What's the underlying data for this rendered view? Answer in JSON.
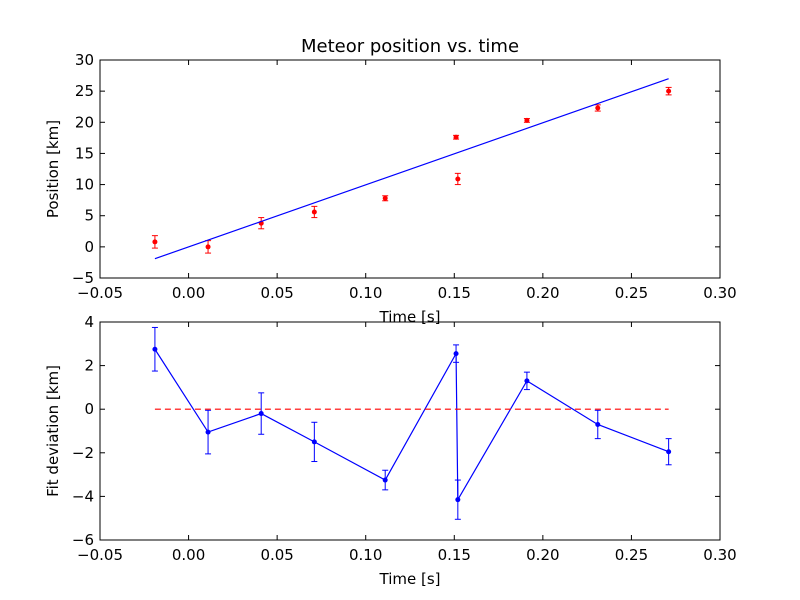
{
  "chart_data": [
    {
      "type": "scatter",
      "title": "Meteor position vs. time",
      "xlabel": "Time [s]",
      "ylabel": "Position [km]",
      "xlim": [
        -0.05,
        0.3
      ],
      "ylim": [
        -5,
        30
      ],
      "x_ticks": [
        -0.05,
        0.0,
        0.05,
        0.1,
        0.15,
        0.2,
        0.25,
        0.3
      ],
      "x_tick_labels": [
        "−0.05",
        "0.00",
        "0.05",
        "0.10",
        "0.15",
        "0.20",
        "0.25",
        "0.30"
      ],
      "y_ticks": [
        -5,
        0,
        5,
        10,
        15,
        20,
        25,
        30
      ],
      "y_tick_labels": [
        "−5",
        "0",
        "5",
        "10",
        "15",
        "20",
        "25",
        "30"
      ],
      "grid": false,
      "series": [
        {
          "style": "points-with-errorbars",
          "color": "#ff0000",
          "x": [
            -0.019,
            0.011,
            0.041,
            0.071,
            0.111,
            0.151,
            0.152,
            0.191,
            0.231,
            0.271
          ],
          "y": [
            0.8,
            0.0,
            3.8,
            5.6,
            7.8,
            17.6,
            10.9,
            20.3,
            22.3,
            25.0
          ],
          "yerr": [
            1.0,
            1.0,
            0.9,
            0.9,
            0.4,
            0.3,
            0.9,
            0.3,
            0.5,
            0.6
          ]
        },
        {
          "style": "line",
          "color": "#0000ff",
          "x": [
            -0.019,
            0.271
          ],
          "y": [
            -1.9,
            27.0
          ]
        }
      ]
    },
    {
      "type": "line",
      "title": "",
      "xlabel": "Time [s]",
      "ylabel": "Fit deviation [km]",
      "xlim": [
        -0.05,
        0.3
      ],
      "ylim": [
        -6,
        4
      ],
      "x_ticks": [
        -0.05,
        0.0,
        0.05,
        0.1,
        0.15,
        0.2,
        0.25,
        0.3
      ],
      "x_tick_labels": [
        "−0.05",
        "0.00",
        "0.05",
        "0.10",
        "0.15",
        "0.20",
        "0.25",
        "0.30"
      ],
      "y_ticks": [
        -6,
        -4,
        -2,
        0,
        2,
        4
      ],
      "y_tick_labels": [
        "−6",
        "−4",
        "−2",
        "0",
        "2",
        "4"
      ],
      "grid": false,
      "series": [
        {
          "style": "line-points-with-errorbars",
          "color": "#0000ff",
          "x": [
            -0.019,
            0.011,
            0.041,
            0.071,
            0.111,
            0.151,
            0.152,
            0.191,
            0.231,
            0.271
          ],
          "y": [
            2.75,
            -1.05,
            -0.2,
            -1.5,
            -3.25,
            2.55,
            -4.15,
            1.3,
            -0.7,
            -1.95
          ],
          "yerr": [
            1.0,
            1.0,
            0.95,
            0.9,
            0.45,
            0.4,
            0.9,
            0.4,
            0.65,
            0.6
          ]
        },
        {
          "style": "dashed-line",
          "color": "#ff0000",
          "x": [
            -0.019,
            0.271
          ],
          "y": [
            0,
            0
          ]
        }
      ]
    }
  ]
}
